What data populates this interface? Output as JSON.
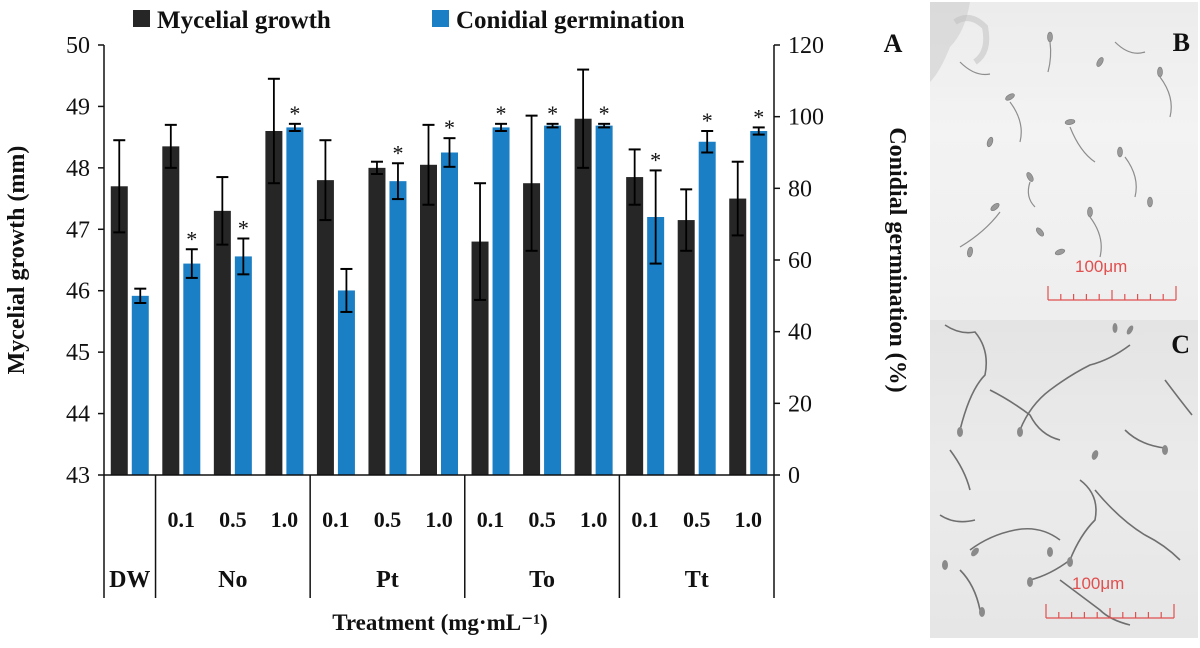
{
  "chart_data": {
    "type": "bar",
    "panel_label": "A",
    "groups": [
      {
        "label": "DW",
        "span": 1
      },
      {
        "label": "No",
        "span": 3
      },
      {
        "label": "Pt",
        "span": 3
      },
      {
        "label": "To",
        "span": 3
      },
      {
        "label": "Tt",
        "span": 3
      }
    ],
    "categories": [
      "",
      "0.1",
      "0.5",
      "1.0",
      "0.1",
      "0.5",
      "1.0",
      "0.1",
      "0.5",
      "1.0",
      "0.1",
      "0.5",
      "1.0"
    ],
    "series": [
      {
        "name": "Mycelial growth",
        "axis": "left",
        "color": "#262626",
        "values": [
          47.7,
          48.35,
          47.3,
          48.6,
          47.8,
          48.0,
          48.05,
          46.8,
          47.75,
          48.8,
          47.85,
          47.15,
          47.5
        ],
        "error": [
          0.75,
          0.35,
          0.55,
          0.85,
          0.65,
          0.1,
          0.65,
          0.95,
          1.1,
          0.8,
          0.45,
          0.5,
          0.6
        ],
        "significant": [
          false,
          false,
          false,
          false,
          false,
          false,
          false,
          false,
          false,
          false,
          false,
          false,
          false
        ]
      },
      {
        "name": "Conidial germination",
        "axis": "right",
        "color": "#1a7fc4",
        "values": [
          50,
          59,
          61,
          97,
          51.5,
          82,
          90,
          97,
          97.5,
          97.5,
          72,
          93,
          96
        ],
        "error": [
          2,
          4,
          5,
          1,
          6,
          5,
          4,
          1,
          0.5,
          0.5,
          13,
          3,
          1
        ],
        "significant": [
          false,
          true,
          true,
          true,
          false,
          true,
          true,
          true,
          true,
          true,
          true,
          true,
          true
        ]
      }
    ],
    "significance_marker": "*",
    "xlabel": "Treatment (mg·mL⁻¹)",
    "ylabel_left": "Mycelial growth (mm)",
    "ylabel_right": "Conidial germination (%)",
    "ylim_left": [
      43,
      50
    ],
    "yticks_left": [
      "43",
      "44",
      "45",
      "46",
      "47",
      "48",
      "49",
      "50"
    ],
    "ylim_right": [
      0,
      120
    ],
    "yticks_right": [
      "0",
      "20",
      "40",
      "60",
      "80",
      "100",
      "120"
    ],
    "legend_position": "top"
  },
  "micrographs": [
    {
      "label": "B",
      "scale": "100μm"
    },
    {
      "label": "C",
      "scale": "100μm"
    }
  ]
}
